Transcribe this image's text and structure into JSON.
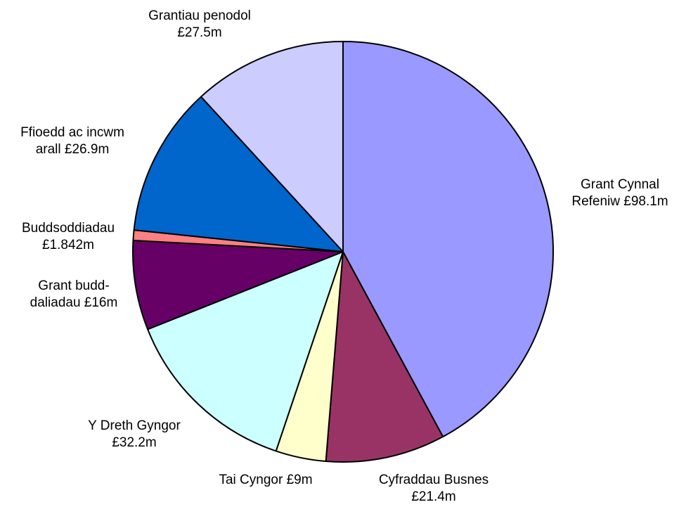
{
  "chart_data": {
    "type": "pie",
    "start_angle_deg": 0,
    "direction": "clockwise",
    "slices": [
      {
        "label_lines": [
          "Grant Cynnal",
          "Refeniw £98.1m"
        ],
        "value": 98.1,
        "color": "#9999ff"
      },
      {
        "label_lines": [
          "Cyfraddau Busnes",
          "£21.4m"
        ],
        "value": 21.4,
        "color": "#993366"
      },
      {
        "label_lines": [
          "Tai Cyngor £9m"
        ],
        "value": 9,
        "color": "#ffffcc"
      },
      {
        "label_lines": [
          "Y Dreth Gyngor",
          "£32.2m"
        ],
        "value": 32.2,
        "color": "#ccffff"
      },
      {
        "label_lines": [
          "Grant budd-",
          "daliadau £16m"
        ],
        "value": 16,
        "color": "#660066"
      },
      {
        "label_lines": [
          "Buddsoddiadau",
          "£1.842m"
        ],
        "value": 1.842,
        "color": "#ff8080"
      },
      {
        "label_lines": [
          "Ffioedd ac incwm",
          "arall £26.9m"
        ],
        "value": 26.9,
        "color": "#0066cc"
      },
      {
        "label_lines": [
          "Grantiau penodol",
          "£27.5m"
        ],
        "value": 27.5,
        "color": "#ccccff"
      }
    ]
  }
}
